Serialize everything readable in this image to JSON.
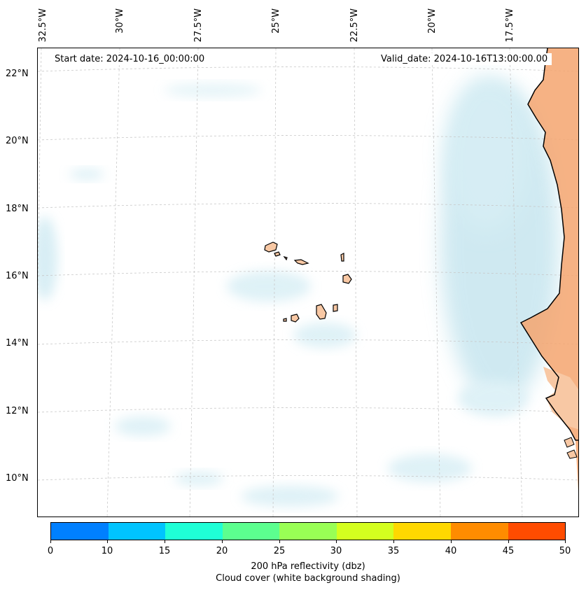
{
  "header": {
    "start_date": "Start date: 2024-10-16_00:00:00",
    "valid_date": "Valid_date: 2024-10-16T13:00:00.00"
  },
  "axes": {
    "longitude_labels": [
      "32.5°W",
      "30°W",
      "27.5°W",
      "25°W",
      "22.5°W",
      "20°W",
      "17.5°W"
    ],
    "latitude_labels": [
      "22°N",
      "20°N",
      "18°N",
      "16°N",
      "14°N",
      "12°N",
      "10°N"
    ],
    "extent": {
      "lon_min": -32.7,
      "lon_max": -15.5,
      "lat_min": 8.8,
      "lat_max": 22.8
    }
  },
  "colorbar": {
    "ticks": [
      "0",
      "10",
      "15",
      "20",
      "25",
      "30",
      "35",
      "40",
      "45",
      "50"
    ],
    "colors": [
      "#0080ff",
      "#00c4ff",
      "#1fffd6",
      "#5cff8f",
      "#99ff55",
      "#d4ff1f",
      "#ffd800",
      "#ff8c00",
      "#ff4c00"
    ],
    "label": "200 hPa reflectivity (dbz)",
    "sublabel": "Cloud cover (white background shading)"
  },
  "map_colors": {
    "land": "#f8c8a4",
    "desert": "#f4a46e",
    "cloud": "#a8d8e6",
    "coast": "#000000",
    "grid": "#c8c8c8"
  },
  "regions": [
    "Cape Verde Islands",
    "West African coast"
  ]
}
